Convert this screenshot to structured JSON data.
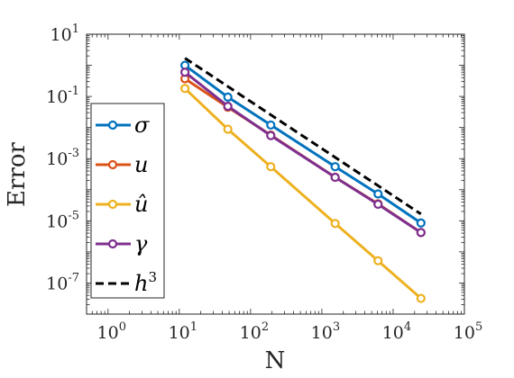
{
  "chart_data": {
    "type": "line",
    "title": "",
    "xlabel": "N",
    "ylabel": "Error",
    "xscale": "log",
    "yscale": "log",
    "xlim": [
      0.5,
      100000
    ],
    "ylim": [
      1e-08,
      10
    ],
    "x_ticks": [
      {
        "value": 1,
        "base": "10",
        "exp": "0"
      },
      {
        "value": 10,
        "base": "10",
        "exp": "1"
      },
      {
        "value": 100,
        "base": "10",
        "exp": "2"
      },
      {
        "value": 1000,
        "base": "10",
        "exp": "3"
      },
      {
        "value": 10000,
        "base": "10",
        "exp": "4"
      },
      {
        "value": 100000,
        "base": "10",
        "exp": "5"
      }
    ],
    "y_ticks": [
      {
        "value": 10,
        "base": "10",
        "exp": "1"
      },
      {
        "value": 0.1,
        "base": "10",
        "exp": "-1"
      },
      {
        "value": 0.001,
        "base": "10",
        "exp": "-3"
      },
      {
        "value": 1e-05,
        "base": "10",
        "exp": "-5"
      },
      {
        "value": 1e-07,
        "base": "10",
        "exp": "-7"
      }
    ],
    "grid": false,
    "legend_position": "left",
    "series": [
      {
        "name": "σ",
        "color": "#0072BD",
        "dashed": false,
        "markers": true,
        "x": [
          12,
          48,
          192,
          1536,
          6144,
          24576
        ],
        "y": [
          1.0,
          0.095,
          0.012,
          0.00055,
          7.3e-05,
          8.5e-06
        ]
      },
      {
        "name": "u",
        "color": "#D95319",
        "dashed": false,
        "markers": true,
        "x": [
          12,
          48,
          192,
          1536,
          6144,
          24576
        ],
        "y": [
          0.37,
          0.045,
          0.0057,
          0.00025,
          3.5e-05,
          4.2e-06
        ]
      },
      {
        "name": "û",
        "color": "#EDB120",
        "dashed": false,
        "markers": true,
        "x": [
          12,
          48,
          192,
          1536,
          6144,
          24576
        ],
        "y": [
          0.18,
          0.0088,
          0.00055,
          8.2e-06,
          5.2e-07,
          3.2e-08
        ]
      },
      {
        "name": "γ",
        "color": "#7E2F8E",
        "dashed": false,
        "markers": true,
        "x": [
          12,
          48,
          192,
          1536,
          6144,
          24576
        ],
        "y": [
          0.6,
          0.048,
          0.0055,
          0.00025,
          3.4e-05,
          4.2e-06
        ]
      },
      {
        "name": "h",
        "name_sup": "3",
        "color": "#000000",
        "dashed": true,
        "markers": false,
        "x": [
          12,
          24576
        ],
        "y": [
          1.7,
          1.65e-05
        ]
      }
    ]
  }
}
